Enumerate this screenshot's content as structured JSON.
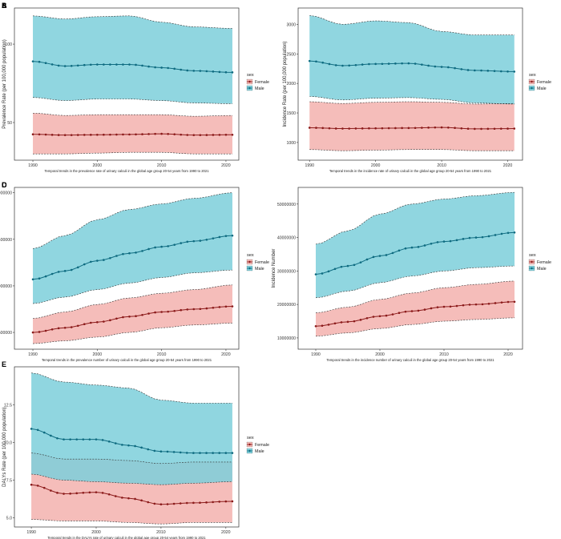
{
  "years": [
    1990,
    1991,
    1992,
    1993,
    1994,
    1995,
    1996,
    1997,
    1998,
    1999,
    2000,
    2001,
    2002,
    2003,
    2004,
    2005,
    2006,
    2007,
    2008,
    2009,
    2010,
    2011,
    2012,
    2013,
    2014,
    2015,
    2016,
    2017,
    2018,
    2019,
    2020,
    2021
  ],
  "legend": {
    "title": "sex",
    "female_label": "Female",
    "male_label": "Male"
  },
  "colors": {
    "female_fill": "#f4b6b2",
    "female_line": "#8b1a1a",
    "male_fill": "#7ccfdb",
    "male_line": "#0e6b80",
    "overlap_fill": "#a3a6a8"
  },
  "chart_data": [
    {
      "panel": "A",
      "type": "area",
      "title": "",
      "xlabel": "Temporal trends in the prevalence rate of urinary calculi in the global age group 20-54 years from 1990 to 2021",
      "ylabel": "Prevalence Rate (per 100,000 population)",
      "xlim": [
        1989,
        2022
      ],
      "ylim": [
        26,
        122
      ],
      "xticks": [
        "1990",
        "2000",
        "2010",
        "2020"
      ],
      "yticks": [
        50,
        100
      ],
      "series": [
        {
          "name": "Female",
          "x_years": [
            1990,
            1995,
            2000,
            2005,
            2010,
            2015,
            2021
          ],
          "mean": [
            42.5,
            42.0,
            42.2,
            42.4,
            42.8,
            42.0,
            42.2
          ],
          "lower": [
            30,
            30,
            30.5,
            31,
            31,
            30,
            30
          ],
          "upper": [
            56,
            54.5,
            55,
            55,
            55,
            54,
            54.5
          ]
        },
        {
          "name": "Male",
          "x_years": [
            1990,
            1995,
            2000,
            2005,
            2010,
            2015,
            2021
          ],
          "mean": [
            89,
            86,
            87,
            87,
            85,
            83,
            82
          ],
          "lower": [
            66,
            64,
            65,
            65,
            64,
            62.5,
            62
          ],
          "upper": [
            118,
            116,
            117.5,
            118,
            114,
            111,
            110
          ]
        }
      ]
    },
    {
      "panel": "B",
      "type": "area",
      "title": "",
      "xlabel": "Temporal trends in the incidence rate of urinary calculi in the global age group 20-54 years from 1990 to 2021",
      "ylabel": "Incidence Rate (per 100,000 population)",
      "xlim": [
        1989,
        2022
      ],
      "ylim": [
        700,
        3250
      ],
      "xticks": [
        "1990",
        "2000",
        "2010",
        "2020"
      ],
      "yticks": [
        1000,
        1500,
        2000,
        2500,
        3000
      ],
      "series": [
        {
          "name": "Female",
          "x_years": [
            1990,
            1995,
            2000,
            2005,
            2010,
            2015,
            2021
          ],
          "mean": [
            1250,
            1235,
            1240,
            1245,
            1255,
            1230,
            1235
          ],
          "lower": [
            880,
            860,
            870,
            880,
            880,
            860,
            860
          ],
          "upper": [
            1690,
            1660,
            1680,
            1690,
            1680,
            1650,
            1660
          ]
        },
        {
          "name": "Male",
          "x_years": [
            1990,
            1995,
            2000,
            2005,
            2010,
            2015,
            2021
          ],
          "mean": [
            2380,
            2300,
            2330,
            2340,
            2280,
            2220,
            2200
          ],
          "lower": [
            1780,
            1720,
            1750,
            1760,
            1730,
            1670,
            1650
          ],
          "upper": [
            3150,
            3000,
            3060,
            3030,
            2880,
            2820,
            2820
          ]
        }
      ]
    },
    {
      "panel": "C",
      "type": "area",
      "title": "",
      "xlabel": "Temporal trends in the prevalence number of urinary calculi in the global age group 20-54 years from 1990 to 2021",
      "ylabel": "Prevalence Number",
      "xlim": [
        1989,
        2022
      ],
      "ylim": [
        320000,
        2040000
      ],
      "xticks": [
        "1990",
        "2000",
        "2010",
        "2020"
      ],
      "yticks": [
        500000,
        1000000,
        1500000,
        2000000
      ],
      "series": [
        {
          "name": "Female",
          "x_years": [
            1990,
            1995,
            2000,
            2005,
            2010,
            2015,
            2021
          ],
          "mean": [
            500000,
            550000,
            610000,
            670000,
            720000,
            750000,
            780000
          ],
          "lower": [
            380000,
            410000,
            450000,
            500000,
            550000,
            580000,
            600000
          ],
          "upper": [
            650000,
            720000,
            800000,
            870000,
            920000,
            960000,
            1010000
          ]
        },
        {
          "name": "Male",
          "x_years": [
            1990,
            1995,
            2000,
            2005,
            2010,
            2015,
            2021
          ],
          "mean": [
            1070000,
            1160000,
            1270000,
            1350000,
            1420000,
            1480000,
            1540000
          ],
          "lower": [
            810000,
            880000,
            960000,
            1030000,
            1090000,
            1140000,
            1170000
          ],
          "upper": [
            1400000,
            1540000,
            1710000,
            1820000,
            1880000,
            1940000,
            2000000
          ]
        }
      ]
    },
    {
      "panel": "D",
      "type": "area",
      "title": "",
      "xlabel": "Temporal trends in the incidence number of urinary calculi in the global age group 20-54 years from 1990 to 2021",
      "ylabel": "Incidence Number",
      "xlim": [
        1989,
        2022
      ],
      "ylim": [
        9500000,
        54500000
      ],
      "xticks": [
        "1990",
        "2000",
        "2010",
        "2020"
      ],
      "yticks": [
        10000000,
        20000000,
        30000000,
        40000000,
        50000000
      ],
      "series": [
        {
          "name": "Female",
          "x_years": [
            1990,
            1995,
            2000,
            2005,
            2010,
            2015,
            2021
          ],
          "mean": [
            13500000,
            14800000,
            16500000,
            18000000,
            19300000,
            20000000,
            20800000
          ],
          "lower": [
            10500000,
            11500000,
            12800000,
            14000000,
            15000000,
            15500000,
            16000000
          ],
          "upper": [
            17500000,
            19200000,
            21500000,
            23400000,
            25000000,
            26000000,
            27000000
          ]
        },
        {
          "name": "Male",
          "x_years": [
            1990,
            1995,
            2000,
            2005,
            2010,
            2015,
            2021
          ],
          "mean": [
            29000000,
            31500000,
            34500000,
            37000000,
            38800000,
            40000000,
            41500000
          ],
          "lower": [
            22000000,
            24000000,
            26500000,
            28500000,
            30000000,
            31000000,
            31500000
          ],
          "upper": [
            38000000,
            42000000,
            47000000,
            50000000,
            51500000,
            52500000,
            53500000
          ]
        }
      ]
    },
    {
      "panel": "E",
      "type": "area",
      "title": "",
      "xlabel": "Temporal trends in the DALYs rate of urinary calculi in the global age group 20-54 years from 1990 to 2021",
      "ylabel": "DALYs Rate (per 100,000 population)",
      "xlim": [
        1989,
        2022
      ],
      "ylim": [
        4.4,
        14.9
      ],
      "xticks": [
        "1990",
        "2000",
        "2010",
        "2020"
      ],
      "yticks": [
        5.0,
        7.5,
        10.0,
        12.5
      ],
      "series": [
        {
          "name": "Female",
          "x_years": [
            1990,
            1995,
            2000,
            2005,
            2010,
            2015,
            2021
          ],
          "mean": [
            7.2,
            6.6,
            6.7,
            6.3,
            5.9,
            6.0,
            6.1
          ],
          "lower": [
            4.9,
            4.8,
            4.8,
            4.7,
            4.6,
            4.7,
            4.7
          ],
          "upper": [
            9.3,
            8.9,
            8.9,
            8.8,
            8.6,
            8.7,
            8.7
          ]
        },
        {
          "name": "Male",
          "x_years": [
            1990,
            1995,
            2000,
            2005,
            2010,
            2015,
            2021
          ],
          "mean": [
            10.9,
            10.2,
            10.2,
            9.8,
            9.4,
            9.3,
            9.3
          ],
          "lower": [
            7.9,
            7.5,
            7.4,
            7.3,
            7.2,
            7.3,
            7.4
          ],
          "upper": [
            14.6,
            14.0,
            13.8,
            13.6,
            12.8,
            12.6,
            12.6
          ]
        }
      ]
    }
  ]
}
